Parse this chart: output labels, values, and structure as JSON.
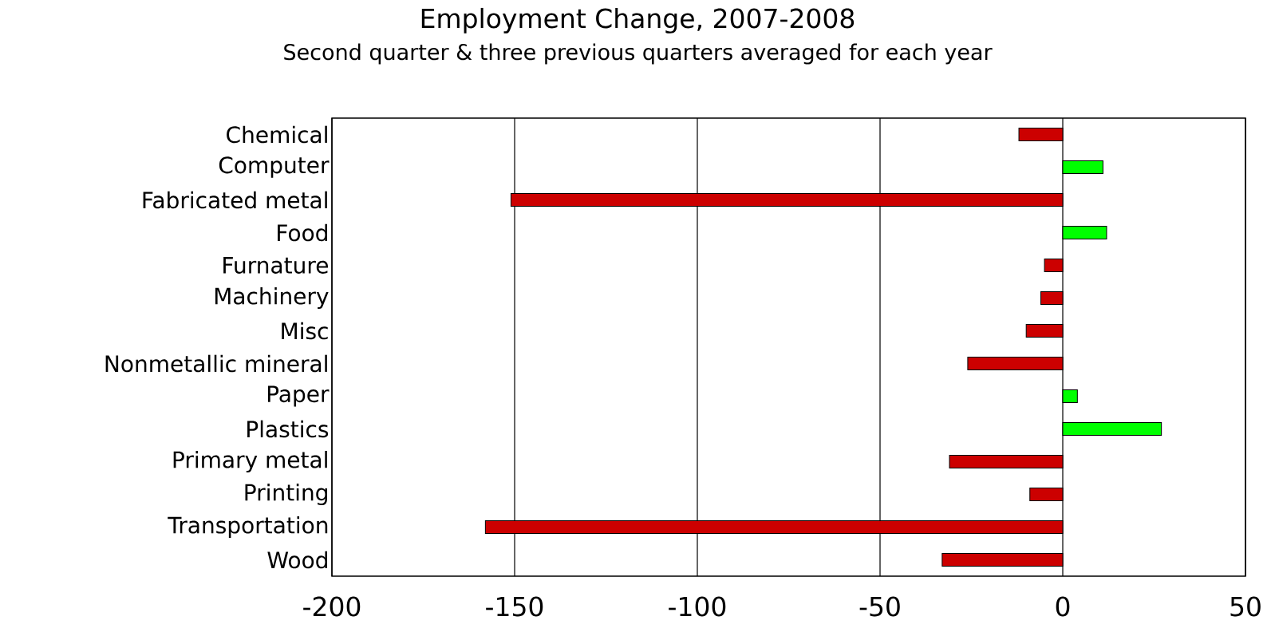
{
  "chart_data": {
    "type": "bar",
    "orientation": "horizontal",
    "title": "Employment Change, 2007-2008",
    "subtitle": "Second quarter & three previous quarters averaged for each year",
    "categories": [
      "Chemical",
      "Computer",
      "Fabricated metal",
      "Food",
      "Furnature",
      "Machinery",
      "Misc",
      "Nonmetallic mineral",
      "Paper",
      "Plastics",
      "Primary metal",
      "Printing",
      "Transportation",
      "Wood"
    ],
    "values": [
      -12,
      11,
      -151,
      12,
      -5,
      -6,
      -10,
      -26,
      4,
      27,
      -31,
      -9,
      -158,
      -33
    ],
    "colors": [
      "#cc0000",
      "#00ff00",
      "#cc0000",
      "#00ff00",
      "#cc0000",
      "#cc0000",
      "#cc0000",
      "#cc0000",
      "#00ff00",
      "#00ff00",
      "#cc0000",
      "#cc0000",
      "#cc0000",
      "#cc0000"
    ],
    "xlim": [
      -200,
      50
    ],
    "xticks": [
      -200,
      -150,
      -100,
      -50,
      0,
      50
    ],
    "grid": "x"
  }
}
